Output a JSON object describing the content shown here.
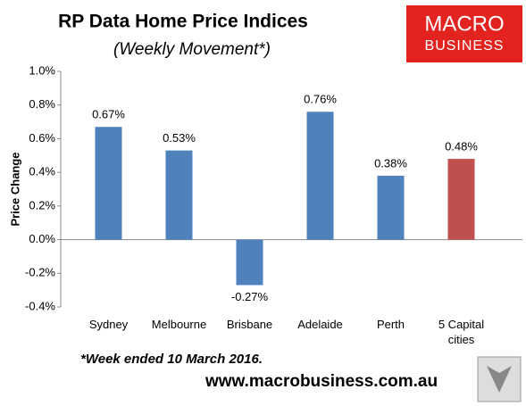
{
  "chart_data": {
    "type": "bar",
    "title": "RP Data Home Price Indices",
    "subtitle": "(Weekly Movement*)",
    "y_label": "Price Change",
    "categories": [
      "Sydney",
      "Melbourne",
      "Brisbane",
      "Adelaide",
      "Perth",
      "5 Capital cities"
    ],
    "values": [
      0.67,
      0.53,
      -0.27,
      0.76,
      0.38,
      0.48
    ],
    "value_labels": [
      "0.67%",
      "0.53%",
      "-0.27%",
      "0.76%",
      "0.38%",
      "0.48%"
    ],
    "colors": [
      "#4f81bd",
      "#4f81bd",
      "#4f81bd",
      "#4f81bd",
      "#4f81bd",
      "#c0504d"
    ],
    "ylim": [
      -0.4,
      1.0
    ],
    "yticks": [
      {
        "value": -0.4,
        "label": "-0.4%"
      },
      {
        "value": -0.2,
        "label": "-0.2%"
      },
      {
        "value": 0,
        "label": "0.0%"
      },
      {
        "value": 0.2,
        "label": "0.2%"
      },
      {
        "value": 0.4,
        "label": "0.4%"
      },
      {
        "value": 0.6,
        "label": "0.6%"
      },
      {
        "value": 0.8,
        "label": "0.8%"
      },
      {
        "value": 1.0,
        "label": "1.0%"
      }
    ],
    "grid": false,
    "footnote": "*Week ended 10 March 2016.",
    "source": "www.macrobusiness.com.au",
    "logo": [
      "MACRO",
      "BUSINESS"
    ]
  }
}
